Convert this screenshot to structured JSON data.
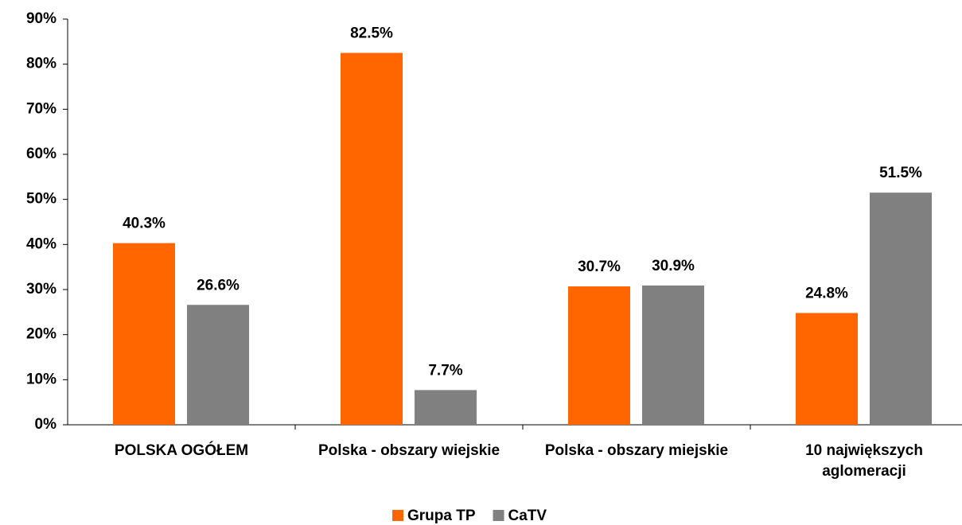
{
  "chart_data": {
    "type": "bar",
    "categories": [
      "POLSKA OGÓŁEM",
      "Polska - obszary wiejskie",
      "Polska - obszary miejskie",
      "10 największych aglomeracji"
    ],
    "series": [
      {
        "name": "Grupa TP",
        "color": "#ff6600",
        "values": [
          40.3,
          82.5,
          30.7,
          24.8
        ],
        "value_labels": [
          "40.3%",
          "82.5%",
          "30.7%",
          "24.8%"
        ]
      },
      {
        "name": "CaTV",
        "color": "#808080",
        "values": [
          26.6,
          7.7,
          30.9,
          51.5
        ],
        "value_labels": [
          "26.6%",
          "7.7%",
          "30.9%",
          "51.5%"
        ]
      }
    ],
    "ylim": [
      0,
      90
    ],
    "yticks": [
      {
        "value": 0,
        "label": "0%"
      },
      {
        "value": 10,
        "label": "10%"
      },
      {
        "value": 20,
        "label": "20%"
      },
      {
        "value": 30,
        "label": "30%"
      },
      {
        "value": 40,
        "label": "40%"
      },
      {
        "value": 50,
        "label": "50%"
      },
      {
        "value": 60,
        "label": "60%"
      },
      {
        "value": 70,
        "label": "70%"
      },
      {
        "value": 80,
        "label": "80%"
      },
      {
        "value": 90,
        "label": "90%"
      }
    ],
    "legend": "bottom"
  }
}
